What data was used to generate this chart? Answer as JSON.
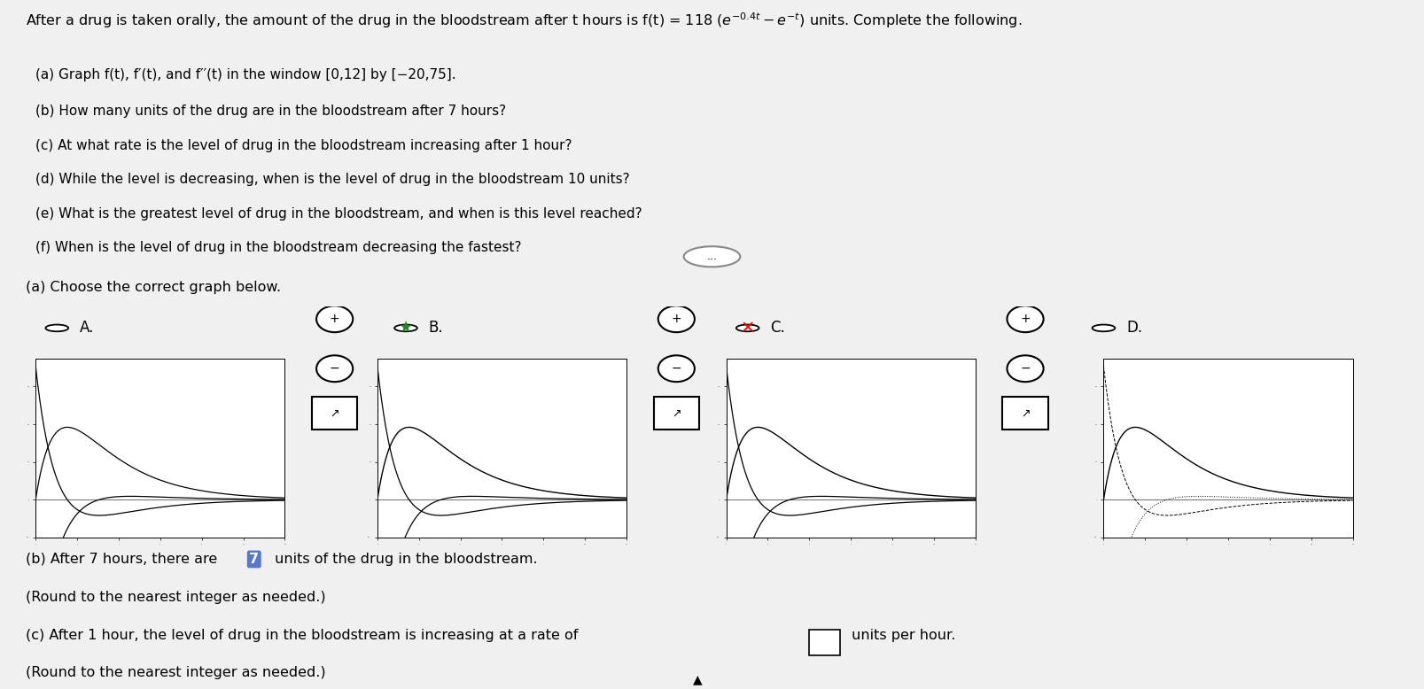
{
  "bg_top": "#f0f0f0",
  "bg_bottom": "#e8ede8",
  "divider_color": "#999999",
  "title_line1": "After a drug is taken orally, the amount of the drug in the bloodstream after t hours is f(t) = 118 (",
  "title_math": "e^{-0.4t} - e^{-t}",
  "title_line2": ") units. Complete the following.",
  "problem_lines": [
    "(a) Graph f(t), f′(t), and f′′(t) in the window [0,12] by [−20,75].",
    "(b) How many units of the drug are in the bloodstream after 7 hours?",
    "(c) At what rate is the level of drug in the bloodstream increasing after 1 hour?",
    "(d) While the level is decreasing, when is the level of drug in the bloodstream 10 units?",
    "(e) What is the greatest level of drug in the bloodstream, and when is this level reached?",
    "(f) When is the level of drug in the bloodstream decreasing the fastest?"
  ],
  "section_a_label": "(a) Choose the correct graph below.",
  "option_labels": [
    "A.",
    "B.",
    "C.",
    "D."
  ],
  "option_b_star": true,
  "option_c_x": true,
  "answer_b_pre": "(b) After 7 hours, there are ",
  "answer_b_val": "7",
  "answer_b_post": " units of the drug in the bloodstream.",
  "answer_b_note": "(Round to the nearest integer as needed.)",
  "answer_c_pre": "(c) After 1 hour, the level of drug in the bloodstream is increasing at a rate of",
  "answer_c_post": "units per hour.",
  "answer_c_note": "(Round to the nearest integer as needed.)",
  "t_min": 0,
  "t_max": 12,
  "y_min": -20,
  "y_max": 75,
  "graph_bg": "#ffffff"
}
